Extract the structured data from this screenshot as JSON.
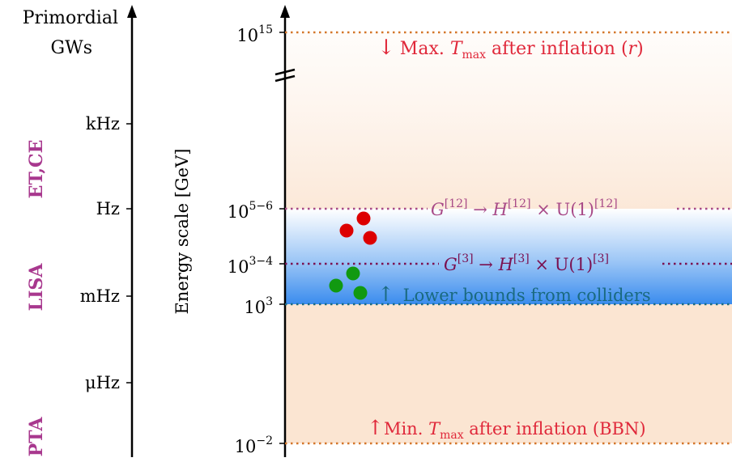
{
  "left_axis": {
    "title_line1": "Primordial",
    "title_line2": "GWs",
    "ticks": [
      "kHz",
      "Hz",
      "mHz",
      "μHz"
    ]
  },
  "detectors": {
    "et_ce": "ET,CE",
    "lisa": "LISA",
    "pta": "PTA"
  },
  "right_axis": {
    "label": "Energy scale [GeV]",
    "ticks": [
      {
        "base": "10",
        "exp": "15"
      },
      {
        "base": "10",
        "exp": "5−6"
      },
      {
        "base": "10",
        "exp": "3−4"
      },
      {
        "base": "10",
        "exp": "3"
      },
      {
        "base": "10",
        "exp": "−2"
      }
    ]
  },
  "annotations": {
    "max_arrow": "↓",
    "max_text_pre": "Max. ",
    "max_T": "T",
    "max_sub": "max",
    "max_text_post": " after inflation (",
    "max_r": "r",
    "max_close": ")",
    "g12_G": "G",
    "g12_sup": "[12]",
    "g12_arrow": " → ",
    "g12_H": "H",
    "g12_hsup": "[12]",
    "g12_times": " × U(1)",
    "g12_usup": "[12]",
    "g3_G": "G",
    "g3_sup": "[3]",
    "g3_arrow": " → ",
    "g3_H": "H",
    "g3_hsup": "[3]",
    "g3_times": " × U(1)",
    "g3_usup": "[3]",
    "collider_arrow": "↑",
    "collider_text": " Lower bounds from colliders",
    "min_arrow": "↑",
    "min_text_pre": "Min. ",
    "min_T": "T",
    "min_sub": "max",
    "min_text_post": " after inflation (BBN)"
  },
  "colors": {
    "axis": "#000000",
    "detector": "#a8388e",
    "orange_line": "#d4762a",
    "red_text": "#e0283a",
    "g12_line": "#a84a88",
    "g3_line": "#7a1050",
    "collider_line": "#1a6a80",
    "red_dot": "#dd0000",
    "green_dot": "#119911",
    "band_orange": "#f8d8bc",
    "band_blue": "#3a8cee"
  }
}
